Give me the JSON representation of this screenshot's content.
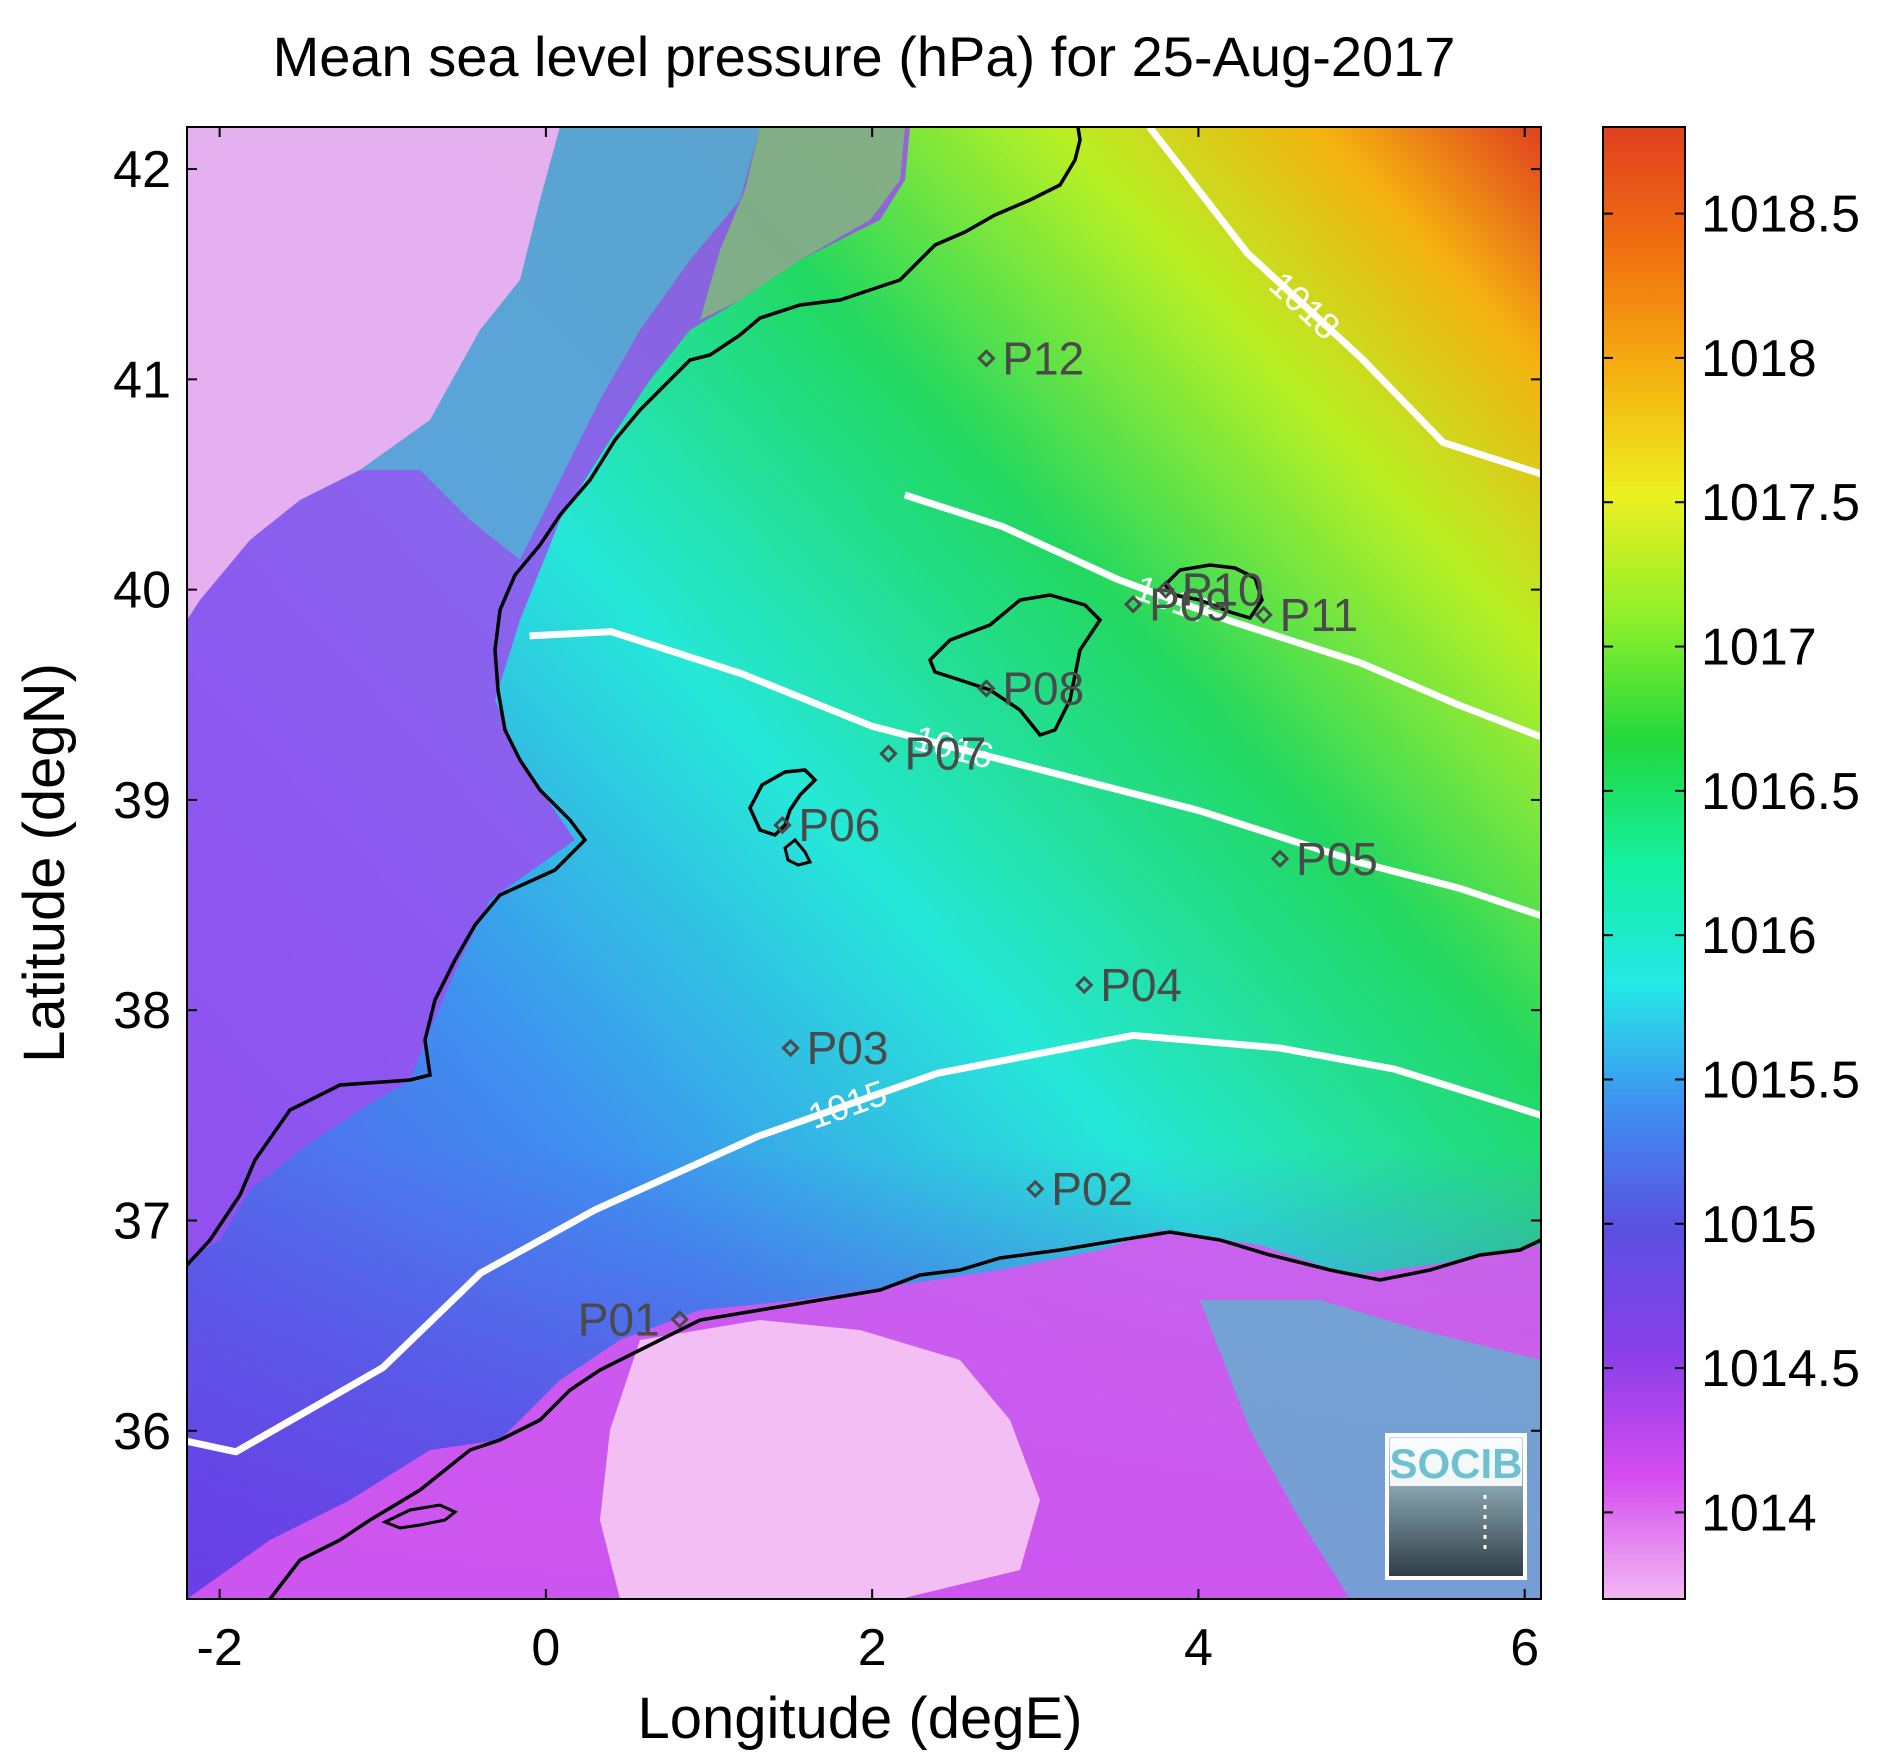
{
  "chart_data": {
    "type": "heatmap",
    "title": "Mean sea level pressure (hPa) for 25-Aug-2017",
    "xlabel": "Longitude (degE)",
    "ylabel": "Latitude (degN)",
    "xlim": [
      -2.2,
      6.1
    ],
    "ylim": [
      35.2,
      42.2
    ],
    "xticks": [
      -2,
      0,
      2,
      4,
      6
    ],
    "yticks": [
      36,
      37,
      38,
      39,
      40,
      41,
      42
    ],
    "colorbar": {
      "range": [
        1013.7,
        1018.8
      ],
      "ticks": [
        1014,
        1014.5,
        1015,
        1015.5,
        1016,
        1016.5,
        1017,
        1017.5,
        1018,
        1018.5
      ],
      "colormap": [
        "#f2b8f2",
        "#d44cf0",
        "#8a3fe8",
        "#5b4fe0",
        "#3f8ff0",
        "#25e8e8",
        "#14f0a0",
        "#22d83c",
        "#8ff02a",
        "#ecf020",
        "#f5b010",
        "#f07010",
        "#e04020"
      ]
    },
    "contours": [
      {
        "level": 1015,
        "label": "1015",
        "points": [
          [
            -2.2,
            35.95
          ],
          [
            -1.9,
            35.9
          ],
          [
            -1.0,
            36.3
          ],
          [
            -0.4,
            36.75
          ],
          [
            0.3,
            37.05
          ],
          [
            1.3,
            37.4
          ],
          [
            2.4,
            37.7
          ],
          [
            3.6,
            37.88
          ],
          [
            4.5,
            37.82
          ],
          [
            5.2,
            37.72
          ],
          [
            5.9,
            37.55
          ],
          [
            6.1,
            37.5
          ]
        ]
      },
      {
        "level": 1016,
        "label": "1016",
        "points": [
          [
            -0.1,
            39.78
          ],
          [
            0.4,
            39.8
          ],
          [
            1.2,
            39.6
          ],
          [
            2.0,
            39.35
          ],
          [
            3.0,
            39.15
          ],
          [
            4.0,
            38.95
          ],
          [
            5.0,
            38.7
          ],
          [
            5.6,
            38.58
          ],
          [
            6.1,
            38.45
          ]
        ]
      },
      {
        "level": 1017,
        "label": "1017",
        "points": [
          [
            2.2,
            40.45
          ],
          [
            2.8,
            40.3
          ],
          [
            3.5,
            40.05
          ],
          [
            4.2,
            39.85
          ],
          [
            5.0,
            39.65
          ],
          [
            5.6,
            39.45
          ],
          [
            6.1,
            39.3
          ]
        ]
      },
      {
        "level": 1018,
        "label": "1018",
        "points": [
          [
            3.7,
            42.2
          ],
          [
            4.3,
            41.6
          ],
          [
            5.0,
            41.1
          ],
          [
            5.5,
            40.7
          ],
          [
            6.1,
            40.55
          ]
        ]
      }
    ],
    "stations": [
      {
        "name": "P01",
        "lon": 0.82,
        "lat": 36.53
      },
      {
        "name": "P02",
        "lon": 3.0,
        "lat": 37.15
      },
      {
        "name": "P03",
        "lon": 1.5,
        "lat": 37.82
      },
      {
        "name": "P04",
        "lon": 3.3,
        "lat": 38.12
      },
      {
        "name": "P05",
        "lon": 4.5,
        "lat": 38.72
      },
      {
        "name": "P06",
        "lon": 1.45,
        "lat": 38.88
      },
      {
        "name": "P07",
        "lon": 2.1,
        "lat": 39.22
      },
      {
        "name": "P08",
        "lon": 2.7,
        "lat": 39.53
      },
      {
        "name": "P09",
        "lon": 3.6,
        "lat": 39.93
      },
      {
        "name": "P10",
        "lon": 3.8,
        "lat": 40.0
      },
      {
        "name": "P11",
        "lon": 4.4,
        "lat": 39.88
      },
      {
        "name": "P12",
        "lon": 2.7,
        "lat": 41.1
      }
    ]
  },
  "logo": {
    "text": "SOCIB"
  }
}
